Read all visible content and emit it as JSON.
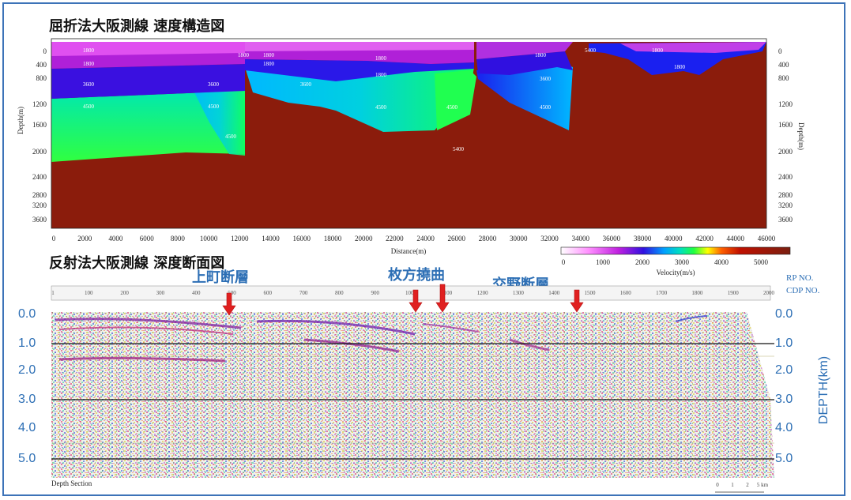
{
  "top_panel": {
    "title": "屈折法大阪測線 速度構造図",
    "x_axis_label": "Distance(m)",
    "y_axis_label_left": "Depth(m)",
    "y_axis_label_right": "Depth(m)",
    "x_ticks": [
      "0",
      "2000",
      "4000",
      "6000",
      "8000",
      "10000",
      "12000",
      "14000",
      "16000",
      "18000",
      "20000",
      "22000",
      "24000",
      "26000",
      "28000",
      "30000",
      "32000",
      "34000",
      "36000",
      "38000",
      "40000",
      "42000",
      "44000",
      "46000"
    ],
    "y_ticks_left": [
      "0",
      "400",
      "800",
      "1200",
      "1600",
      "2000",
      "2400",
      "2800",
      "3200",
      "3600"
    ],
    "y_ticks_right": [
      "0",
      "400",
      "800",
      "1200",
      "1600",
      "2000",
      "2400",
      "2800",
      "3200",
      "3600"
    ],
    "velocity_labels": [
      "1800",
      "1800",
      "1800",
      "1800",
      "1800",
      "1800",
      "1800",
      "1800",
      "1800",
      "1800",
      "3600",
      "3600",
      "3600",
      "3600",
      "4500",
      "4500",
      "4500",
      "4500",
      "4500",
      "4500",
      "5400",
      "5400"
    ],
    "colorbar": {
      "label": "Velocity(m/s)",
      "ticks": [
        "0",
        "1000",
        "2000",
        "3000",
        "4000",
        "5000"
      ],
      "colors": [
        "#ffffff",
        "#ff80ff",
        "#c020e0",
        "#3010e0",
        "#00a0ff",
        "#00e0c0",
        "#20ff40",
        "#ffff00",
        "#ff6000",
        "#c01000",
        "#7a1f10"
      ]
    }
  },
  "bottom_panel": {
    "title": "反射法大阪測線 深度断面図",
    "faults": [
      {
        "name": "上町断層"
      },
      {
        "name": "枚方撓曲"
      },
      {
        "name": "交野断層"
      }
    ],
    "rp_label": "RP NO.",
    "cdp_label": "CDP NO.",
    "depth_axis_label": "DEPTH(km)",
    "depth_ticks_left": [
      "0.0",
      "1.0",
      "2.0",
      "3.0",
      "4.0",
      "5.0"
    ],
    "depth_ticks_right": [
      "0.0",
      "1.0",
      "2.0",
      "3.0",
      "4.0",
      "5.0"
    ],
    "cdp_ticks": [
      "1",
      "100",
      "200",
      "300",
      "400",
      "500",
      "600",
      "700",
      "800",
      "900",
      "1000",
      "1100",
      "1200",
      "1300",
      "1400",
      "1500",
      "1600",
      "1700",
      "1800",
      "1900",
      "2000"
    ],
    "footer_left": "Depth Section",
    "scale_ticks": [
      "0",
      "1",
      "2",
      "5 km"
    ]
  },
  "colors": {
    "frame": "#3d73b8",
    "fault_text": "#2d6fb5",
    "arrow": "#e02020",
    "basement": "#8b1c0c"
  }
}
